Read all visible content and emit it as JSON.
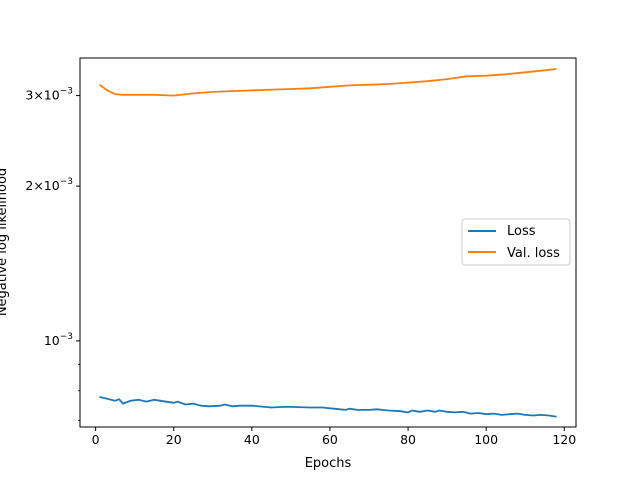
{
  "chart_data": {
    "type": "line",
    "xlabel": "Epochs",
    "ylabel": "Negative log likelihood",
    "xlim": [
      -4,
      123
    ],
    "ylim": [
      0.00068,
      0.00355
    ],
    "yscale": "log",
    "grid": false,
    "legend_position": "center-right",
    "x_ticks": [
      0,
      20,
      40,
      60,
      80,
      100,
      120
    ],
    "y_ticks": [
      {
        "value": 0.001,
        "mantissa": "",
        "exponent": "−3"
      },
      {
        "value": 0.002,
        "mantissa": "2",
        "exponent": "−3"
      },
      {
        "value": 0.003,
        "mantissa": "3",
        "exponent": "−3"
      }
    ],
    "y_minor_ticks": [
      0.0007,
      0.0008,
      0.0009,
      0.004
    ],
    "series": [
      {
        "name": "Loss",
        "color": "#1f77b4",
        "x": [
          1,
          5,
          6,
          7,
          9,
          11,
          13,
          15,
          20,
          21,
          23,
          25,
          27,
          29,
          32,
          33,
          35,
          37,
          40,
          45,
          48,
          50,
          55,
          58,
          61,
          64,
          65,
          67,
          70,
          72,
          75,
          78,
          79,
          80,
          81,
          83,
          85,
          87,
          88,
          90,
          92,
          94,
          96,
          98,
          100,
          102,
          104,
          106,
          108,
          110,
          112,
          114,
          116,
          117,
          118
        ],
        "y": [
          0.000778,
          0.000765,
          0.00077,
          0.000755,
          0.000765,
          0.000768,
          0.000762,
          0.000768,
          0.000758,
          0.000762,
          0.000752,
          0.000755,
          0.000748,
          0.000746,
          0.000748,
          0.000752,
          0.000746,
          0.000748,
          0.000748,
          0.000742,
          0.000744,
          0.000744,
          0.000742,
          0.000742,
          0.000738,
          0.000734,
          0.000738,
          0.000734,
          0.000734,
          0.000736,
          0.000732,
          0.00073,
          0.000728,
          0.000726,
          0.000732,
          0.000728,
          0.000732,
          0.000728,
          0.000732,
          0.000728,
          0.000726,
          0.000728,
          0.000722,
          0.000724,
          0.00072,
          0.000722,
          0.000718,
          0.00072,
          0.000722,
          0.000718,
          0.000716,
          0.000718,
          0.000716,
          0.000714,
          0.000712
        ]
      },
      {
        "name": "Val. loss",
        "color": "#ff7f0e",
        "x": [
          1,
          3,
          5,
          7,
          10,
          15,
          20,
          25,
          30,
          40,
          50,
          55,
          60,
          65,
          70,
          75,
          80,
          85,
          90,
          95,
          100,
          105,
          110,
          115,
          118
        ],
        "y": [
          0.00315,
          0.00307,
          0.00302,
          0.00301,
          0.00301,
          0.00301,
          0.003,
          0.00303,
          0.00305,
          0.00307,
          0.00309,
          0.0031,
          0.00312,
          0.00314,
          0.00315,
          0.00316,
          0.00318,
          0.0032,
          0.00323,
          0.00327,
          0.00328,
          0.0033,
          0.00333,
          0.00336,
          0.00338
        ]
      }
    ]
  }
}
